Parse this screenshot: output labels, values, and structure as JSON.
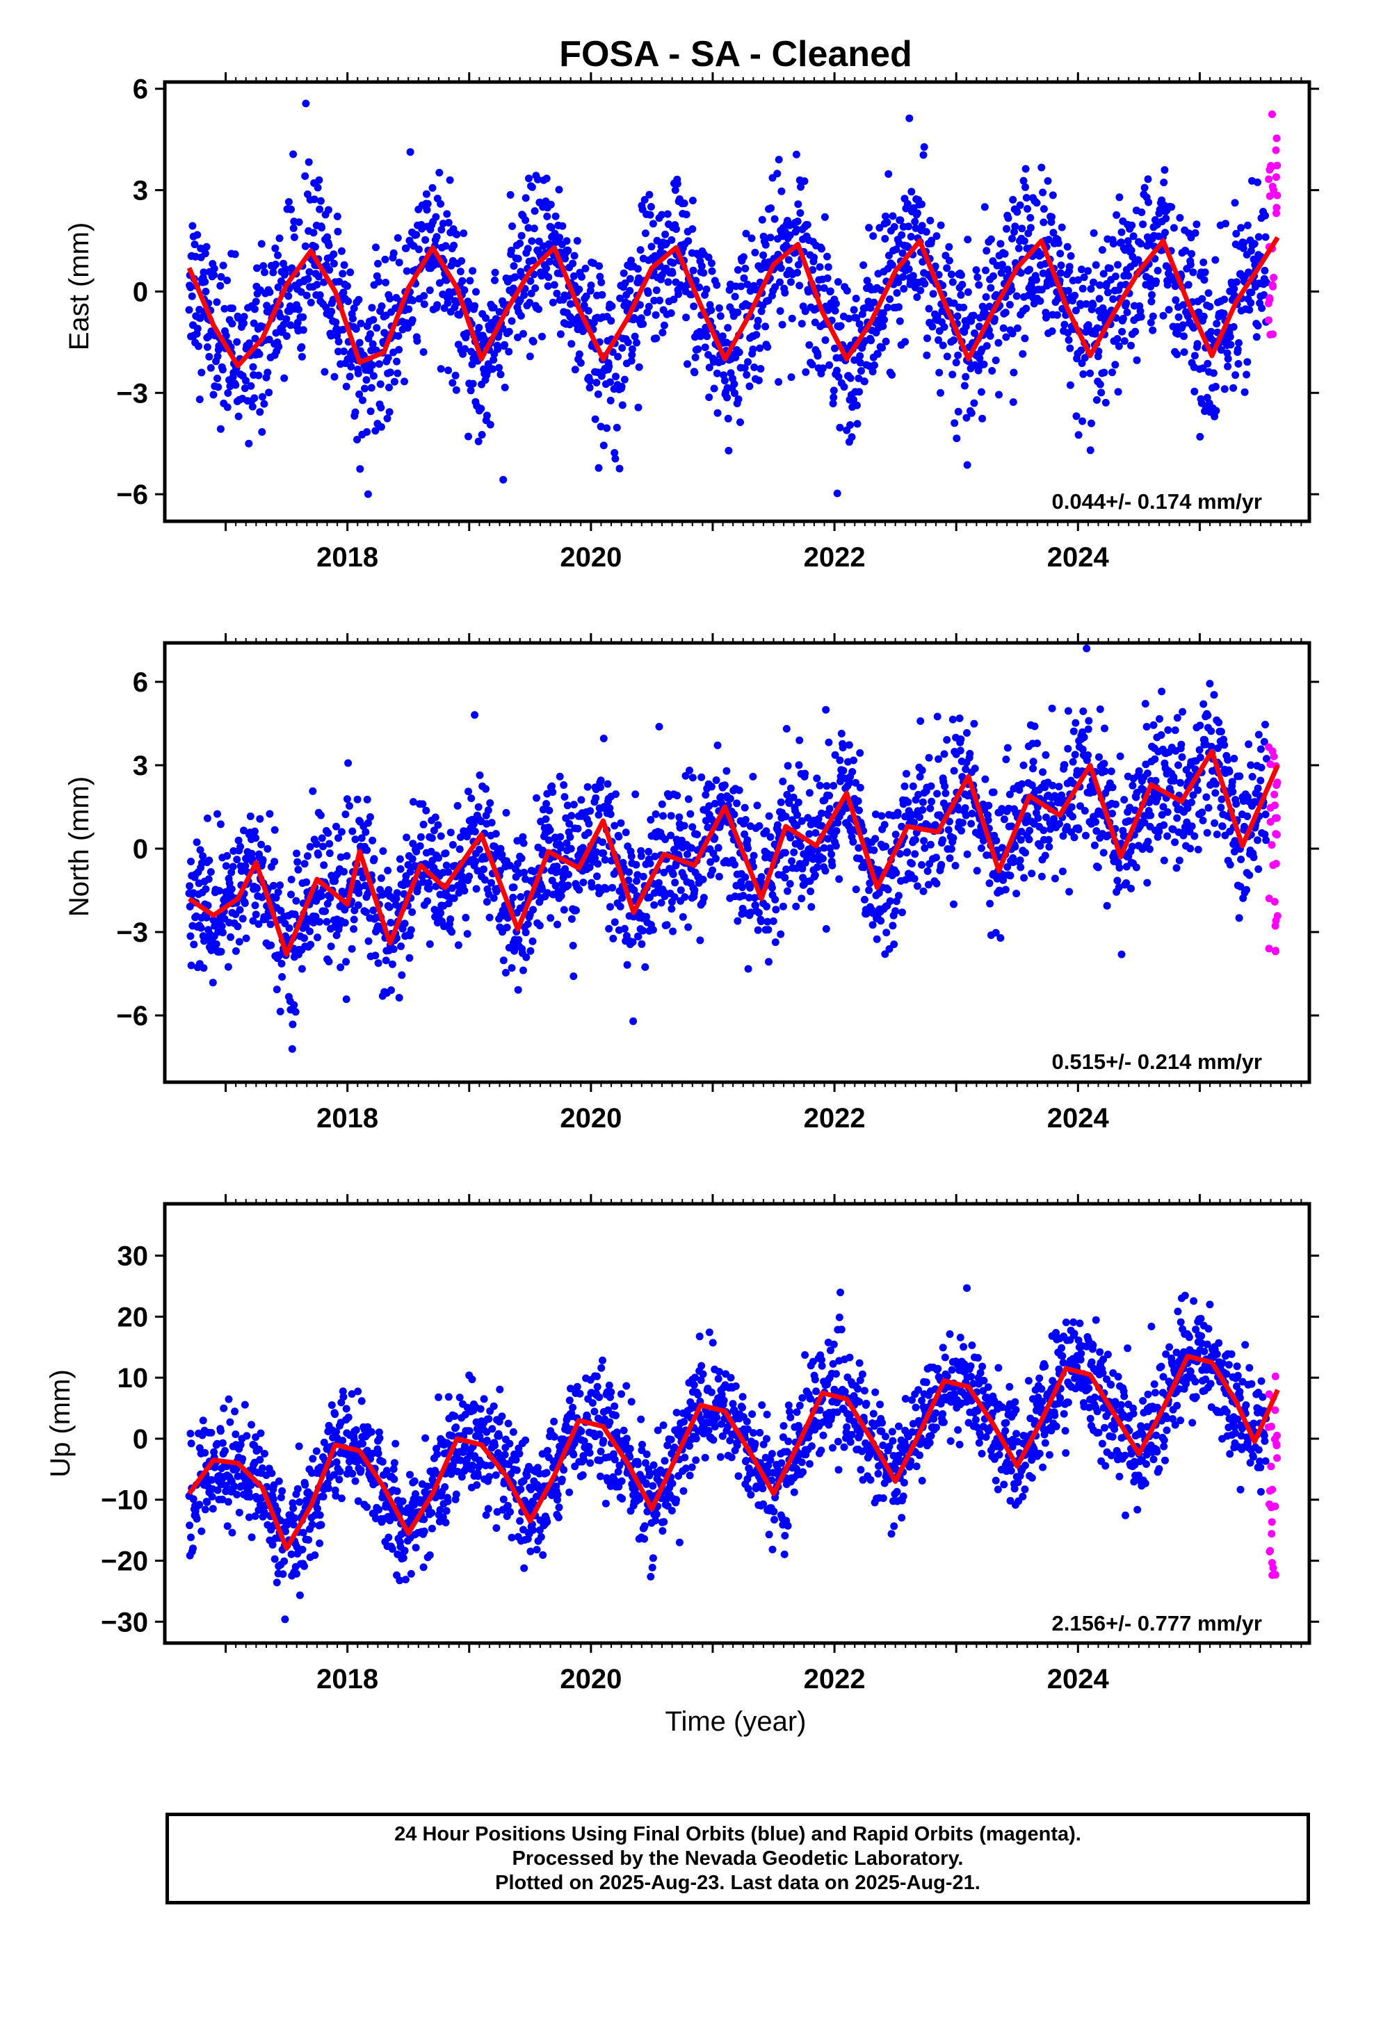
{
  "title": "FOSA  - SA - Cleaned",
  "xlabel": "Time (year)",
  "footer": {
    "line1": "24 Hour Positions Using Final Orbits (blue) and Rapid Orbits (magenta).",
    "line2": "Processed by the Nevada Geodetic Laboratory.",
    "line3": "Plotted on 2025-Aug-23. Last data on 2025-Aug-21."
  },
  "colors": {
    "final": "#0000ff",
    "rapid": "#ff00ff",
    "fit": "#ff0000",
    "frame": "#000000"
  },
  "chart_data": [
    {
      "type": "scatter",
      "ylabel": "East (mm)",
      "rate": "0.044+/- 0.174 mm/yr",
      "xlim": [
        2016.5,
        2025.9
      ],
      "ylim": [
        -6.8,
        6.2
      ],
      "yticks": [
        -6,
        -3,
        0,
        3,
        6
      ],
      "ytick_labels": [
        "−6",
        "−3",
        "0",
        "3",
        "6"
      ],
      "xticks": [
        2018,
        2020,
        2022,
        2024
      ],
      "xtick_labels": [
        "2018",
        "2020",
        "2022",
        "2024"
      ],
      "grid": false,
      "series": [],
      "final_orbit_points": {
        "x_range": [
          2016.7,
          2025.55
        ],
        "trend_mm_per_yr": 0.044,
        "seasonal_amplitude_mm": 1.8,
        "scatter_mm": 1.2
      },
      "rapid_orbit_points": {
        "x_range": [
          2025.56,
          2025.64
        ],
        "y_range": [
          -1.3,
          5.9
        ]
      },
      "fit_line": [
        [
          2016.7,
          0.7
        ],
        [
          2016.9,
          -1.0
        ],
        [
          2017.1,
          -2.2
        ],
        [
          2017.3,
          -1.4
        ],
        [
          2017.5,
          0.2
        ],
        [
          2017.7,
          1.2
        ],
        [
          2017.9,
          0.0
        ],
        [
          2018.1,
          -2.1
        ],
        [
          2018.3,
          -1.8
        ],
        [
          2018.5,
          0.1
        ],
        [
          2018.7,
          1.3
        ],
        [
          2018.9,
          0.1
        ],
        [
          2019.1,
          -2.0
        ],
        [
          2019.3,
          -0.6
        ],
        [
          2019.5,
          0.6
        ],
        [
          2019.7,
          1.3
        ],
        [
          2019.9,
          -0.5
        ],
        [
          2020.1,
          -2.0
        ],
        [
          2020.3,
          -0.8
        ],
        [
          2020.5,
          0.7
        ],
        [
          2020.7,
          1.3
        ],
        [
          2020.9,
          -0.4
        ],
        [
          2021.1,
          -2.0
        ],
        [
          2021.3,
          -0.7
        ],
        [
          2021.5,
          0.8
        ],
        [
          2021.7,
          1.4
        ],
        [
          2021.9,
          -0.6
        ],
        [
          2022.1,
          -2.0
        ],
        [
          2022.3,
          -0.9
        ],
        [
          2022.5,
          0.6
        ],
        [
          2022.7,
          1.5
        ],
        [
          2022.9,
          -0.3
        ],
        [
          2023.1,
          -2.0
        ],
        [
          2023.3,
          -0.6
        ],
        [
          2023.5,
          0.7
        ],
        [
          2023.7,
          1.5
        ],
        [
          2023.9,
          -0.4
        ],
        [
          2024.1,
          -1.9
        ],
        [
          2024.3,
          -0.6
        ],
        [
          2024.5,
          0.6
        ],
        [
          2024.7,
          1.5
        ],
        [
          2024.9,
          -0.3
        ],
        [
          2025.1,
          -1.9
        ],
        [
          2025.3,
          -0.3
        ],
        [
          2025.5,
          0.8
        ],
        [
          2025.64,
          1.6
        ]
      ]
    },
    {
      "type": "scatter",
      "ylabel": "North (mm)",
      "rate": "0.515+/- 0.214 mm/yr",
      "xlim": [
        2016.5,
        2025.9
      ],
      "ylim": [
        -8.4,
        7.4
      ],
      "yticks": [
        -6,
        -3,
        0,
        3,
        6
      ],
      "ytick_labels": [
        "−6",
        "−3",
        "0",
        "3",
        "6"
      ],
      "xticks": [
        2018,
        2020,
        2022,
        2024
      ],
      "xtick_labels": [
        "2018",
        "2020",
        "2022",
        "2024"
      ],
      "grid": false,
      "series": [],
      "final_orbit_points": {
        "x_range": [
          2016.7,
          2025.55
        ],
        "trend_mm_per_yr": 0.515,
        "seasonal_amplitude_mm": 1.4,
        "scatter_mm": 1.3
      },
      "rapid_orbit_points": {
        "x_range": [
          2025.56,
          2025.64
        ],
        "y_range": [
          -3.8,
          3.8
        ]
      },
      "fit_line": [
        [
          2016.7,
          -1.8
        ],
        [
          2016.9,
          -2.4
        ],
        [
          2017.1,
          -1.8
        ],
        [
          2017.25,
          -0.5
        ],
        [
          2017.5,
          -3.8
        ],
        [
          2017.75,
          -1.1
        ],
        [
          2018.0,
          -2.0
        ],
        [
          2018.1,
          -0.1
        ],
        [
          2018.35,
          -3.4
        ],
        [
          2018.6,
          -0.6
        ],
        [
          2018.8,
          -1.4
        ],
        [
          2019.1,
          0.5
        ],
        [
          2019.4,
          -2.9
        ],
        [
          2019.65,
          -0.1
        ],
        [
          2019.9,
          -0.7
        ],
        [
          2020.1,
          1.0
        ],
        [
          2020.35,
          -2.3
        ],
        [
          2020.6,
          -0.2
        ],
        [
          2020.85,
          -0.6
        ],
        [
          2021.1,
          1.5
        ],
        [
          2021.4,
          -1.8
        ],
        [
          2021.6,
          0.8
        ],
        [
          2021.85,
          0.1
        ],
        [
          2022.1,
          2.0
        ],
        [
          2022.35,
          -1.4
        ],
        [
          2022.6,
          0.8
        ],
        [
          2022.85,
          0.6
        ],
        [
          2023.1,
          2.6
        ],
        [
          2023.35,
          -0.8
        ],
        [
          2023.6,
          1.9
        ],
        [
          2023.85,
          1.2
        ],
        [
          2024.1,
          3.0
        ],
        [
          2024.35,
          -0.3
        ],
        [
          2024.6,
          2.3
        ],
        [
          2024.85,
          1.7
        ],
        [
          2025.1,
          3.5
        ],
        [
          2025.35,
          0.1
        ],
        [
          2025.64,
          3.0
        ]
      ]
    },
    {
      "type": "scatter",
      "ylabel": "Up (mm)",
      "rate": "2.156+/- 0.777 mm/yr",
      "xlim": [
        2016.5,
        2025.9
      ],
      "ylim": [
        -33.5,
        38.5
      ],
      "yticks": [
        -30,
        -20,
        -10,
        0,
        10,
        20,
        30
      ],
      "ytick_labels": [
        "−30",
        "−20",
        "−10",
        "0",
        "10",
        "20",
        "30"
      ],
      "xticks": [
        2018,
        2020,
        2022,
        2024
      ],
      "xtick_labels": [
        "2018",
        "2020",
        "2022",
        "2024"
      ],
      "grid": false,
      "series": [],
      "final_orbit_points": {
        "x_range": [
          2016.7,
          2025.55
        ],
        "trend_mm_per_yr": 2.156,
        "seasonal_amplitude_mm": 8.0,
        "scatter_mm": 4.5
      },
      "rapid_orbit_points": {
        "x_range": [
          2025.56,
          2025.64
        ],
        "y_range": [
          -23,
          12
        ]
      },
      "fit_line": [
        [
          2016.7,
          -9
        ],
        [
          2016.9,
          -3.5
        ],
        [
          2017.1,
          -4
        ],
        [
          2017.3,
          -8
        ],
        [
          2017.5,
          -18
        ],
        [
          2017.7,
          -11
        ],
        [
          2017.9,
          -1
        ],
        [
          2018.1,
          -2
        ],
        [
          2018.3,
          -8
        ],
        [
          2018.5,
          -15.5
        ],
        [
          2018.7,
          -9
        ],
        [
          2018.9,
          0
        ],
        [
          2019.1,
          -1
        ],
        [
          2019.3,
          -6
        ],
        [
          2019.5,
          -13.5
        ],
        [
          2019.7,
          -6
        ],
        [
          2019.9,
          3
        ],
        [
          2020.1,
          2
        ],
        [
          2020.3,
          -4
        ],
        [
          2020.5,
          -11.5
        ],
        [
          2020.7,
          -3
        ],
        [
          2020.9,
          5.5
        ],
        [
          2021.1,
          4.5
        ],
        [
          2021.3,
          -2
        ],
        [
          2021.5,
          -9
        ],
        [
          2021.7,
          -1
        ],
        [
          2021.9,
          7.5
        ],
        [
          2022.1,
          6.5
        ],
        [
          2022.3,
          0
        ],
        [
          2022.5,
          -7
        ],
        [
          2022.7,
          1
        ],
        [
          2022.9,
          9.5
        ],
        [
          2023.1,
          8.5
        ],
        [
          2023.3,
          2.5
        ],
        [
          2023.5,
          -4.5
        ],
        [
          2023.7,
          3
        ],
        [
          2023.9,
          11.5
        ],
        [
          2024.1,
          10.5
        ],
        [
          2024.3,
          4
        ],
        [
          2024.5,
          -2.5
        ],
        [
          2024.7,
          5
        ],
        [
          2024.9,
          13.5
        ],
        [
          2025.1,
          12.5
        ],
        [
          2025.3,
          6
        ],
        [
          2025.45,
          -0.5
        ],
        [
          2025.64,
          8
        ]
      ]
    }
  ]
}
